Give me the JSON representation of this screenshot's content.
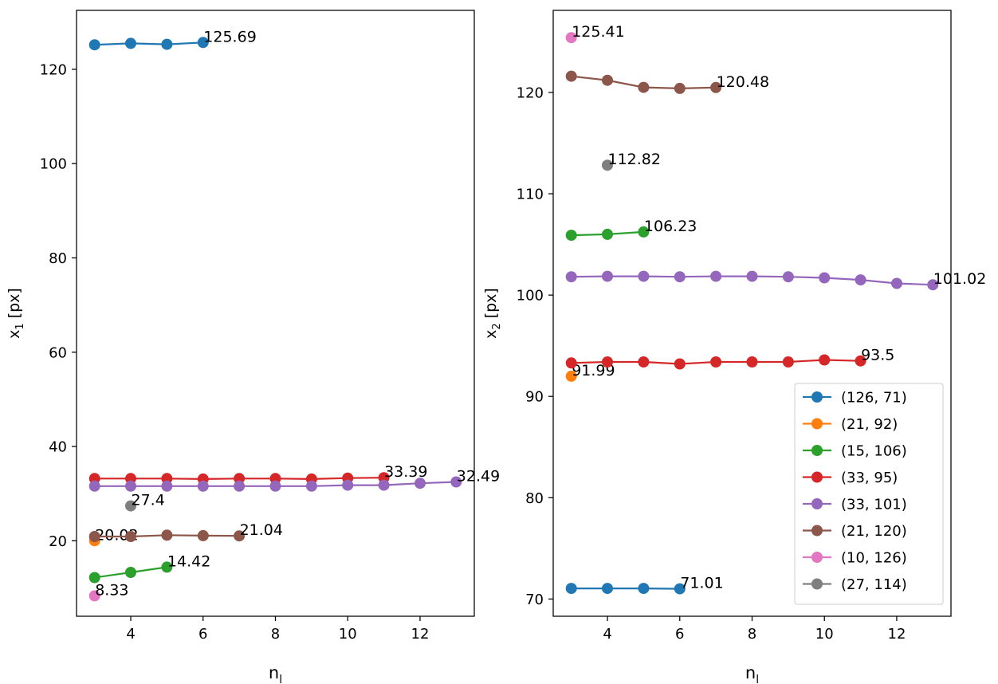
{
  "chart_data": [
    {
      "type": "line",
      "xlabel": "n_l",
      "ylabel": "x_1 [px]",
      "xlim": [
        2.5,
        13.5
      ],
      "ylim": [
        4,
        132.5
      ],
      "xticks": [
        4,
        6,
        8,
        10,
        12
      ],
      "yticks": [
        20,
        40,
        60,
        80,
        100,
        120
      ],
      "series": [
        {
          "name": "(126, 71)",
          "color": "#1f77b4",
          "x": [
            3,
            4,
            5,
            6
          ],
          "y": [
            125.2,
            125.5,
            125.3,
            125.69
          ],
          "annotation": "125.69"
        },
        {
          "name": "(21, 92)",
          "color": "#ff7f0e",
          "x": [
            3
          ],
          "y": [
            20.02
          ],
          "annotation": "20.02"
        },
        {
          "name": "(15, 106)",
          "color": "#2ca02c",
          "x": [
            3,
            4,
            5
          ],
          "y": [
            12.2,
            13.3,
            14.42
          ],
          "annotation": "14.42"
        },
        {
          "name": "(33, 95)",
          "color": "#d62728",
          "x": [
            3,
            4,
            5,
            6,
            7,
            8,
            9,
            10,
            11
          ],
          "y": [
            33.2,
            33.2,
            33.2,
            33.1,
            33.2,
            33.2,
            33.1,
            33.3,
            33.39
          ],
          "annotation": "33.39"
        },
        {
          "name": "(33, 101)",
          "color": "#9467bd",
          "x": [
            3,
            4,
            5,
            6,
            7,
            8,
            9,
            10,
            11,
            12,
            13
          ],
          "y": [
            31.6,
            31.6,
            31.6,
            31.6,
            31.6,
            31.6,
            31.6,
            31.8,
            31.8,
            32.2,
            32.49
          ],
          "annotation": "32.49"
        },
        {
          "name": "(21, 120)",
          "color": "#8c564b",
          "x": [
            3,
            4,
            5,
            6,
            7
          ],
          "y": [
            20.9,
            20.9,
            21.2,
            21.1,
            21.04
          ],
          "annotation": "21.04"
        },
        {
          "name": "(10, 126)",
          "color": "#e377c2",
          "x": [
            3
          ],
          "y": [
            8.33
          ],
          "annotation": "8.33"
        },
        {
          "name": "(27, 114)",
          "color": "#7f7f7f",
          "x": [
            4
          ],
          "y": [
            27.4
          ],
          "annotation": "27.4"
        }
      ]
    },
    {
      "type": "line",
      "xlabel": "n_l",
      "ylabel": "x_2 [px]",
      "xlim": [
        2.5,
        13.5
      ],
      "ylim": [
        68.3,
        128.1
      ],
      "xticks": [
        4,
        6,
        8,
        10,
        12
      ],
      "yticks": [
        70,
        80,
        90,
        100,
        110,
        120
      ],
      "legend_loc": "lower right",
      "series": [
        {
          "name": "(126, 71)",
          "color": "#1f77b4",
          "x": [
            3,
            4,
            5,
            6
          ],
          "y": [
            71.05,
            71.05,
            71.05,
            71.01
          ],
          "annotation": "71.01"
        },
        {
          "name": "(21, 92)",
          "color": "#ff7f0e",
          "x": [
            3
          ],
          "y": [
            91.99
          ],
          "annotation": "91.99"
        },
        {
          "name": "(15, 106)",
          "color": "#2ca02c",
          "x": [
            3,
            4,
            5
          ],
          "y": [
            105.9,
            106.0,
            106.23
          ],
          "annotation": "106.23"
        },
        {
          "name": "(33, 95)",
          "color": "#d62728",
          "x": [
            3,
            4,
            5,
            6,
            7,
            8,
            9,
            10,
            11
          ],
          "y": [
            93.3,
            93.4,
            93.4,
            93.2,
            93.4,
            93.4,
            93.4,
            93.6,
            93.5
          ],
          "annotation": "93.5"
        },
        {
          "name": "(33, 101)",
          "color": "#9467bd",
          "x": [
            3,
            4,
            5,
            6,
            7,
            8,
            9,
            10,
            11,
            12,
            13
          ],
          "y": [
            101.8,
            101.85,
            101.85,
            101.8,
            101.85,
            101.85,
            101.8,
            101.7,
            101.5,
            101.15,
            101.02
          ],
          "annotation": "101.02"
        },
        {
          "name": "(21, 120)",
          "color": "#8c564b",
          "x": [
            3,
            4,
            5,
            6,
            7
          ],
          "y": [
            121.6,
            121.2,
            120.5,
            120.4,
            120.48
          ],
          "annotation": "120.48"
        },
        {
          "name": "(10, 126)",
          "color": "#e377c2",
          "x": [
            3
          ],
          "y": [
            125.41
          ],
          "annotation": "125.41"
        },
        {
          "name": "(27, 114)",
          "color": "#7f7f7f",
          "x": [
            4
          ],
          "y": [
            112.82
          ],
          "annotation": "112.82"
        }
      ]
    }
  ]
}
